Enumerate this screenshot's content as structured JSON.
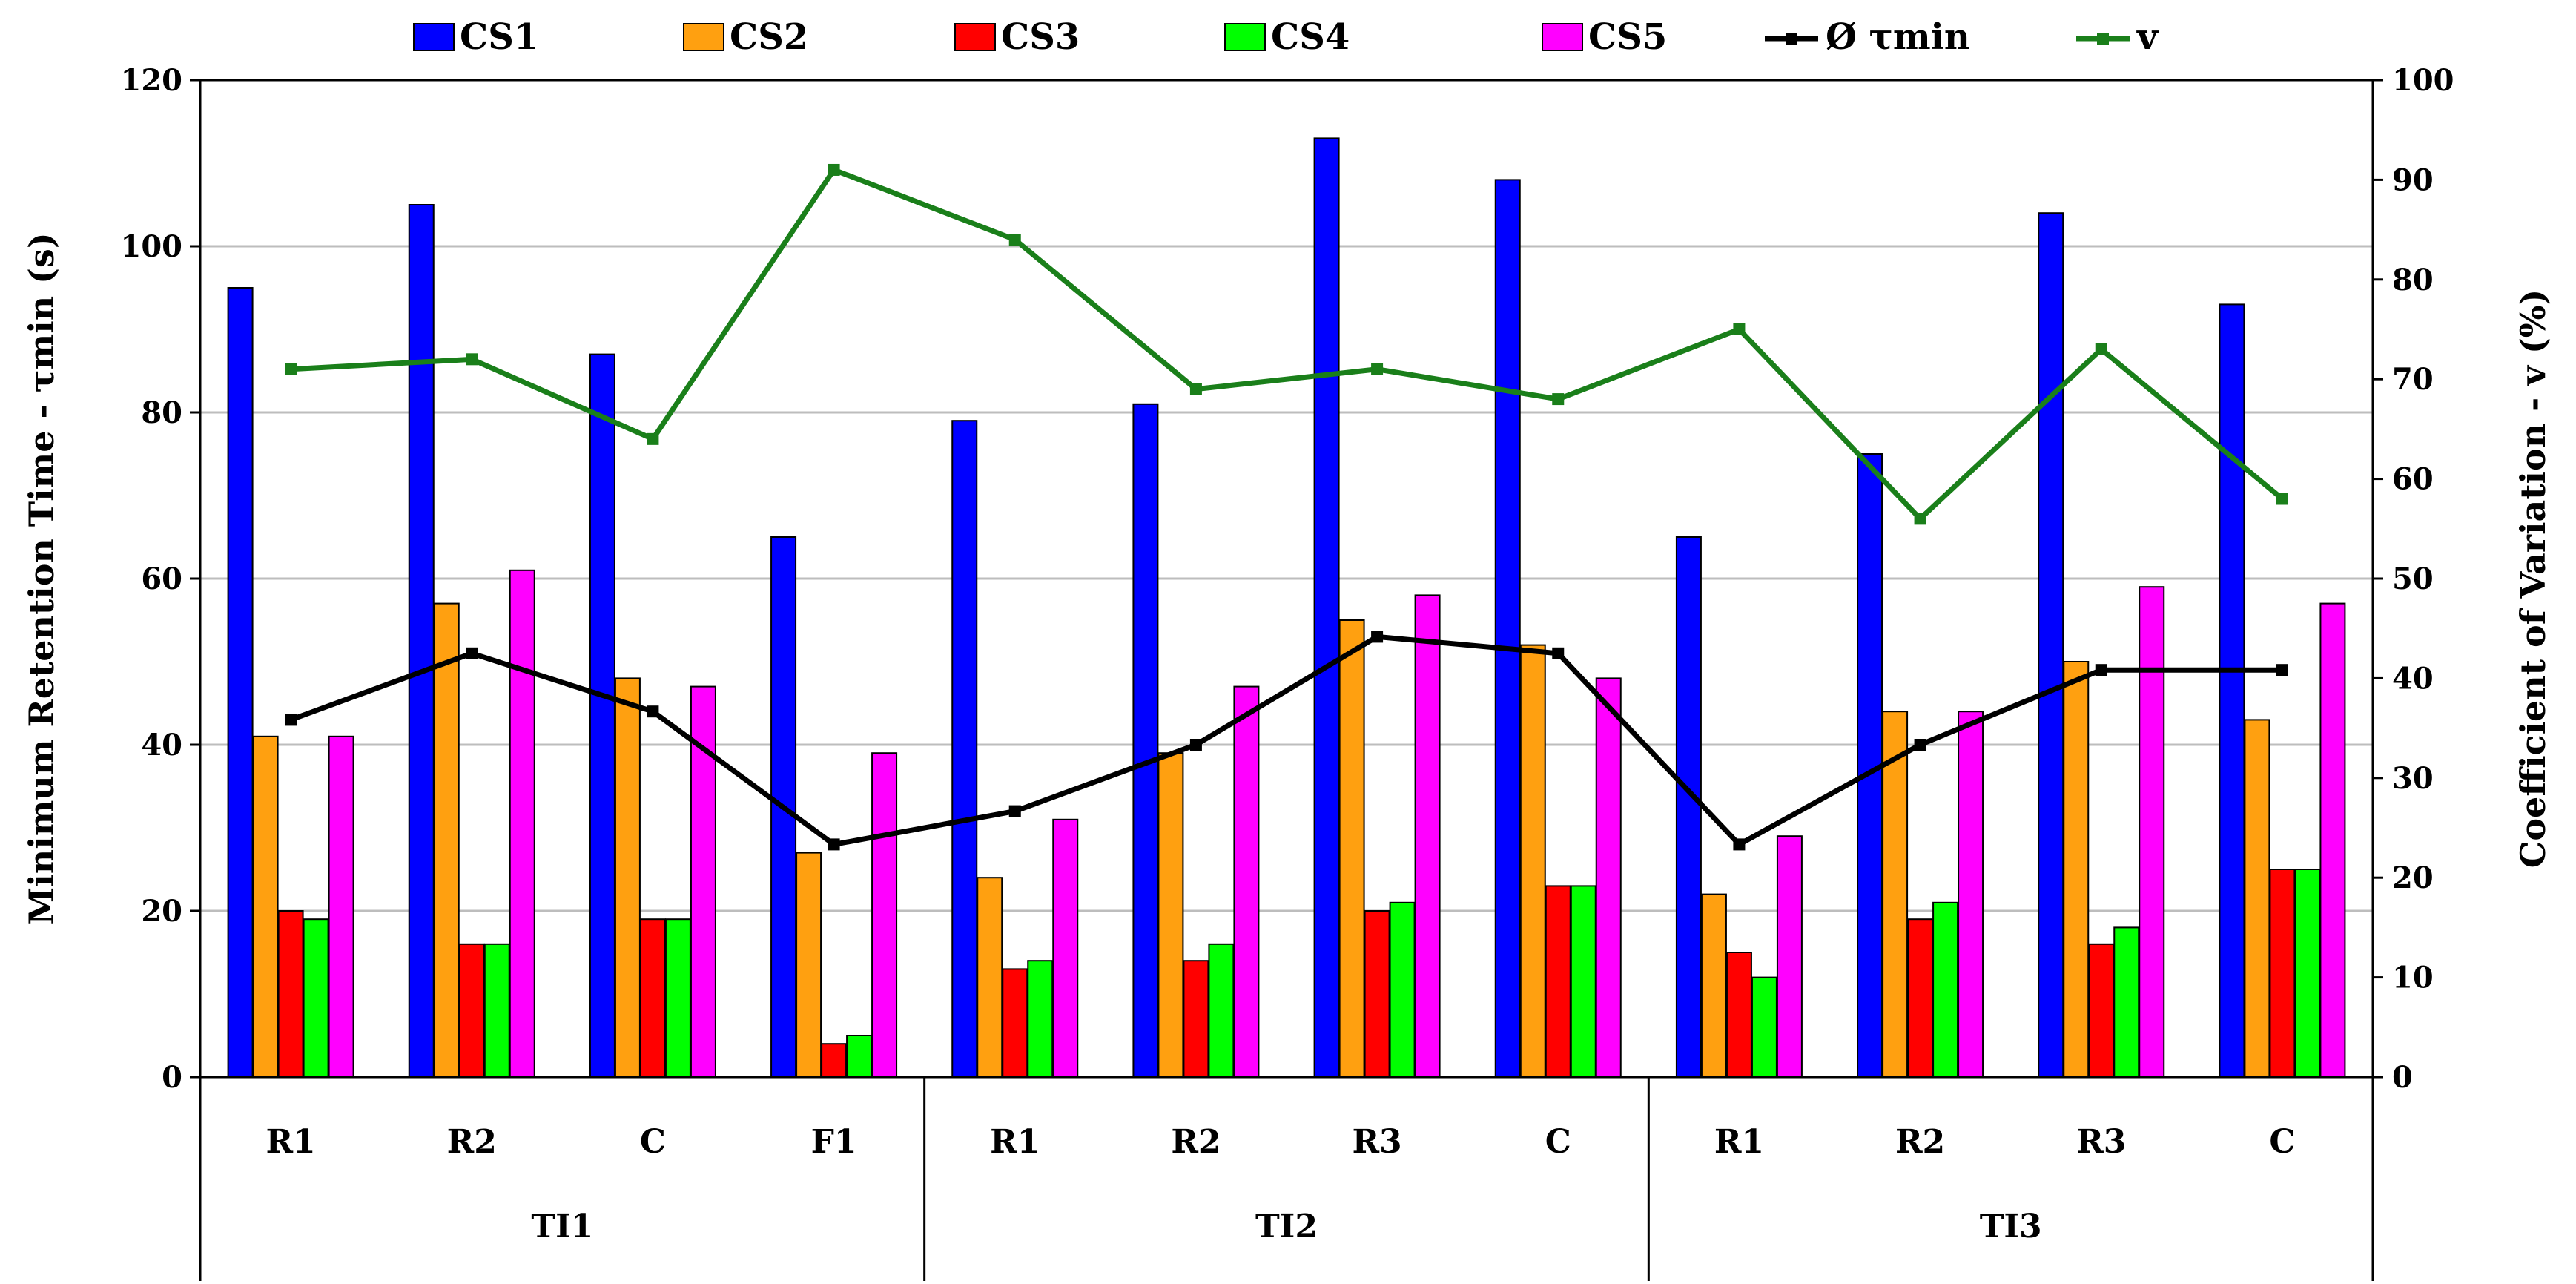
{
  "chart_data": {
    "type": "bar",
    "title": "",
    "ylabel": "Minimum Retention Time - τmin (s)",
    "y2label": "Coefficient of Variation - v (%)",
    "ylim": [
      0,
      120
    ],
    "y2lim": [
      0,
      100
    ],
    "yticks": [
      0,
      20,
      40,
      60,
      80,
      100,
      120
    ],
    "y2ticks": [
      0,
      10,
      20,
      30,
      40,
      50,
      60,
      70,
      80,
      90,
      100
    ],
    "grid": true,
    "legend_position": "top",
    "groups": [
      {
        "label": "TI1",
        "categories": [
          "R1",
          "R2",
          "C",
          "F1"
        ]
      },
      {
        "label": "TI2",
        "categories": [
          "R1",
          "R2",
          "R3",
          "C"
        ]
      },
      {
        "label": "TI3",
        "categories": [
          "R1",
          "R2",
          "R3",
          "C"
        ]
      }
    ],
    "series": [
      {
        "name": "CS1",
        "type": "bar",
        "axis": "left",
        "color": "#0000FF",
        "values": [
          95,
          105,
          87,
          65,
          79,
          81,
          113,
          108,
          65,
          75,
          104,
          93
        ]
      },
      {
        "name": "CS2",
        "type": "bar",
        "axis": "left",
        "color": "#FFA010",
        "values": [
          41,
          57,
          48,
          27,
          24,
          39,
          55,
          52,
          22,
          44,
          50,
          43
        ]
      },
      {
        "name": "CS3",
        "type": "bar",
        "axis": "left",
        "color": "#FF0000",
        "values": [
          20,
          16,
          19,
          4,
          13,
          14,
          20,
          23,
          15,
          19,
          16,
          25
        ]
      },
      {
        "name": "CS4",
        "type": "bar",
        "axis": "left",
        "color": "#00FF00",
        "values": [
          19,
          16,
          19,
          5,
          14,
          16,
          21,
          23,
          12,
          21,
          18,
          25
        ]
      },
      {
        "name": "CS5",
        "type": "bar",
        "axis": "left",
        "color": "#FF00FF",
        "values": [
          41,
          61,
          47,
          39,
          31,
          47,
          58,
          48,
          29,
          44,
          59,
          57
        ]
      },
      {
        "name": "Ø τmin",
        "type": "line",
        "axis": "left",
        "color": "#000000",
        "values": [
          43,
          51,
          44,
          28,
          32,
          40,
          53,
          51,
          28,
          40,
          49,
          49
        ]
      },
      {
        "name": "v",
        "type": "line",
        "axis": "right",
        "color": "#1A7F1A",
        "values": [
          71,
          72,
          64,
          91,
          84,
          69,
          71,
          68,
          75,
          56,
          73,
          58
        ]
      }
    ]
  }
}
